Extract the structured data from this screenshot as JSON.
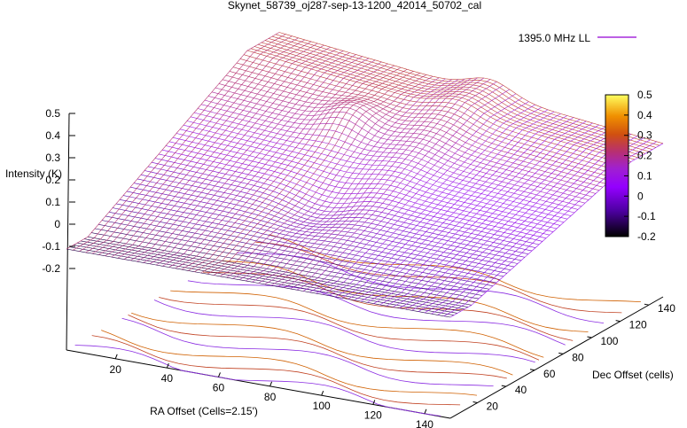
{
  "chart_data": {
    "type": "surface3d",
    "title": "Skynet_58739_oj287-sep-13-1200_42014_50702_cal",
    "xlabel": "RA Offset (Cells=2.15')",
    "ylabel": "Dec Offset (cells)",
    "zlabel": "Intensity (K)",
    "series": [
      {
        "name": "1395.0 MHz LL",
        "color": "#9400d3"
      }
    ],
    "legend_position": "top-right",
    "x_ticks": [
      "20",
      "40",
      "60",
      "80",
      "100",
      "120",
      "140"
    ],
    "y_ticks": [
      "20",
      "40",
      "60",
      "80",
      "100",
      "120",
      "140"
    ],
    "z_ticks": [
      "0.5",
      "0.4",
      "0.3",
      "0.2",
      "0.1",
      "0",
      "-0.1",
      "-0.2"
    ],
    "colorbox_ticks": [
      "0.5",
      "0.4",
      "0.3",
      "0.2",
      "0.1",
      "0",
      "-0.1",
      "-0.2"
    ],
    "xlim": [
      1,
      150
    ],
    "ylim": [
      1,
      150
    ],
    "zlim": [
      -0.2,
      0.5
    ],
    "cbrange": [
      -0.2,
      0.5
    ],
    "palette": [
      "#000000",
      "#4c00a0",
      "#9000e8",
      "#a020f0",
      "#b23080",
      "#c84a1a",
      "#e07800",
      "#f4c000",
      "#ffff50"
    ],
    "has_contours": true,
    "contour_colors": [
      "#8a2be2",
      "#c04020",
      "#d06000"
    ],
    "surface_grid": "fine mesh over the full RA x Dec range"
  }
}
